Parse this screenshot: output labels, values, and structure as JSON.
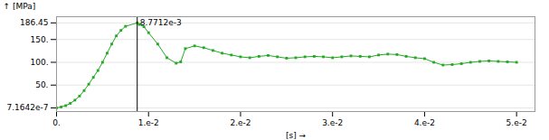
{
  "chart_data": {
    "type": "line",
    "xlabel": "[s]",
    "ylabel": "[MPa]",
    "x": [
      0.0,
      0.0005,
      0.001,
      0.0015,
      0.002,
      0.0025,
      0.003,
      0.0035,
      0.004,
      0.0045,
      0.005,
      0.0055,
      0.006,
      0.0065,
      0.007,
      0.0075,
      0.00877,
      0.009,
      0.0095,
      0.01,
      0.011,
      0.012,
      0.013,
      0.0135,
      0.014,
      0.015,
      0.016,
      0.017,
      0.018,
      0.019,
      0.02,
      0.021,
      0.022,
      0.023,
      0.024,
      0.025,
      0.026,
      0.027,
      0.028,
      0.029,
      0.03,
      0.031,
      0.032,
      0.033,
      0.034,
      0.035,
      0.036,
      0.037,
      0.038,
      0.039,
      0.04,
      0.041,
      0.042,
      0.043,
      0.044,
      0.045,
      0.046,
      0.047,
      0.048,
      0.049,
      0.05
    ],
    "series": [
      {
        "color": "#22aa22",
        "marker": "square",
        "values": [
          7.1642e-07,
          2.0,
          5.0,
          10.0,
          17.0,
          26.0,
          38.0,
          52.0,
          67.0,
          82.0,
          100.0,
          120.0,
          140.0,
          158.0,
          170.0,
          179.0,
          186.45,
          183.0,
          178.0,
          165.0,
          140.0,
          110.0,
          98.0,
          101.0,
          130.0,
          136.0,
          132.0,
          126.0,
          120.0,
          116.0,
          112.0,
          110.0,
          113.0,
          115.0,
          112.0,
          109.0,
          110.0,
          112.0,
          113.0,
          112.0,
          110.0,
          112.0,
          114.0,
          113.0,
          112.0,
          116.0,
          118.0,
          117.0,
          113.0,
          110.0,
          108.0,
          100.0,
          94.0,
          95.0,
          97.0,
          100.0,
          102.0,
          103.0,
          102.0,
          101.0,
          100.0
        ]
      }
    ],
    "xlim": [
      0,
      0.052
    ],
    "ylim": [
      -8,
      200
    ],
    "xticks": [
      {
        "value": 0,
        "label": "0."
      },
      {
        "value": 0.01,
        "label": "1.e-2"
      },
      {
        "value": 0.02,
        "label": "2.e-2"
      },
      {
        "value": 0.03,
        "label": "3.e-2"
      },
      {
        "value": 0.04,
        "label": "4.e-2"
      },
      {
        "value": 0.05,
        "label": "5.e-2"
      }
    ],
    "yticks": [
      {
        "value": 7.1642e-07,
        "label": "7.1642e-7"
      },
      {
        "value": 50,
        "label": "50."
      },
      {
        "value": 100,
        "label": "100."
      },
      {
        "value": 150,
        "label": "150."
      },
      186.45
    ],
    "grid": "y",
    "vline": {
      "x": 0.0087712,
      "label": "8.7712e-3",
      "color": "#000000"
    }
  }
}
